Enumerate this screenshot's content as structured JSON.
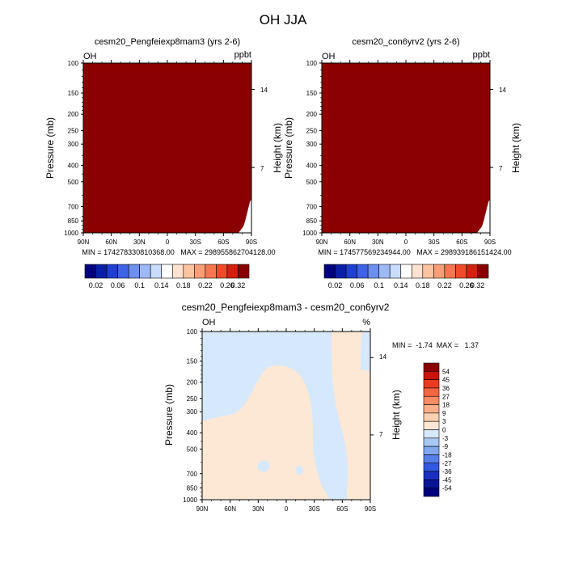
{
  "figure_title": "OH JJA",
  "chart_data": [
    {
      "type": "heatmap",
      "title": "cesm20_Pengfeiexp8mam3 (yrs 2-6)",
      "left_label": "OH",
      "right_label": "ppbt",
      "xlabel": "",
      "ylabel": "Pressure (mb)",
      "y2label": "Height (km)",
      "x_ticks": [
        "90N",
        "60N",
        "30N",
        "0",
        "30S",
        "60S",
        "90S"
      ],
      "y_ticks": [
        "100",
        "150",
        "200",
        "250",
        "300",
        "400",
        "500",
        "700",
        "850",
        "1000"
      ],
      "y2_ticks": [
        "14",
        "7"
      ],
      "stats": "MIN = 174278330810368.00   MAX = 298955862704128.00",
      "field_description": "values far exceed top contour level; filled with highest color",
      "fill_color": "#8b0000"
    },
    {
      "type": "heatmap",
      "title": "cesm20_con6yrv2 (yrs 2-6)",
      "left_label": "OH",
      "right_label": "ppbt",
      "xlabel": "",
      "ylabel": "Pressure (mb)",
      "y2label": "Height (km)",
      "x_ticks": [
        "90N",
        "60N",
        "30N",
        "0",
        "30S",
        "60S",
        "90S"
      ],
      "y_ticks": [
        "100",
        "150",
        "200",
        "250",
        "300",
        "400",
        "500",
        "700",
        "850",
        "1000"
      ],
      "y2_ticks": [
        "14",
        "7"
      ],
      "stats": "MIN = 174577569234944.00   MAX = 298939186151424.00",
      "field_description": "values far exceed top contour level; filled with highest color",
      "fill_color": "#8b0000"
    },
    {
      "type": "heatmap",
      "title": "cesm20_Pengfeiexp8mam3 - cesm20_con6yrv2",
      "left_label": "OH",
      "right_label": "%",
      "xlabel": "",
      "ylabel": "Pressure (mb)",
      "y2label": "Height (km)",
      "x_ticks": [
        "90N",
        "60N",
        "30N",
        "0",
        "30S",
        "60S",
        "90S"
      ],
      "y_ticks": [
        "100",
        "150",
        "200",
        "250",
        "300",
        "400",
        "500",
        "700",
        "850",
        "1000"
      ],
      "y2_ticks": [
        "14",
        "7"
      ],
      "stats": "MIN =  -1.74  MAX =   1.37",
      "regions": [
        {
          "range": "-3 to 0",
          "color": "#d6e8fb"
        },
        {
          "range": "0 to 3",
          "color": "#fde8d6"
        }
      ]
    }
  ],
  "top_colorbar": {
    "labels": [
      "0.02",
      "0.06",
      "0.1",
      "0.14",
      "0.18",
      "0.22",
      "0.26",
      "0.32"
    ],
    "colors": [
      "#00007f",
      "#0a1fa8",
      "#1f3fd0",
      "#3f63e6",
      "#6c8ff0",
      "#9db9f6",
      "#c9dcfb",
      "#ffffff",
      "#fde2cf",
      "#fcc3a1",
      "#fb9e77",
      "#f8764f",
      "#f04a2a",
      "#d4200f",
      "#8b0000"
    ]
  },
  "diff_colorbar": {
    "labels": [
      "54",
      "45",
      "36",
      "27",
      "18",
      "9",
      "3",
      "0",
      "-3",
      "-9",
      "-18",
      "-27",
      "-36",
      "-45",
      "-54"
    ],
    "colors": [
      "#8b0000",
      "#c8140a",
      "#e83b1f",
      "#f4663f",
      "#f98c64",
      "#fbb08a",
      "#fdd0b2",
      "#fde8d6",
      "#d6e8fb",
      "#a9c8f4",
      "#80a8ef",
      "#577fe9",
      "#3357de",
      "#1a2fc0",
      "#0a1495",
      "#00007f"
    ]
  }
}
